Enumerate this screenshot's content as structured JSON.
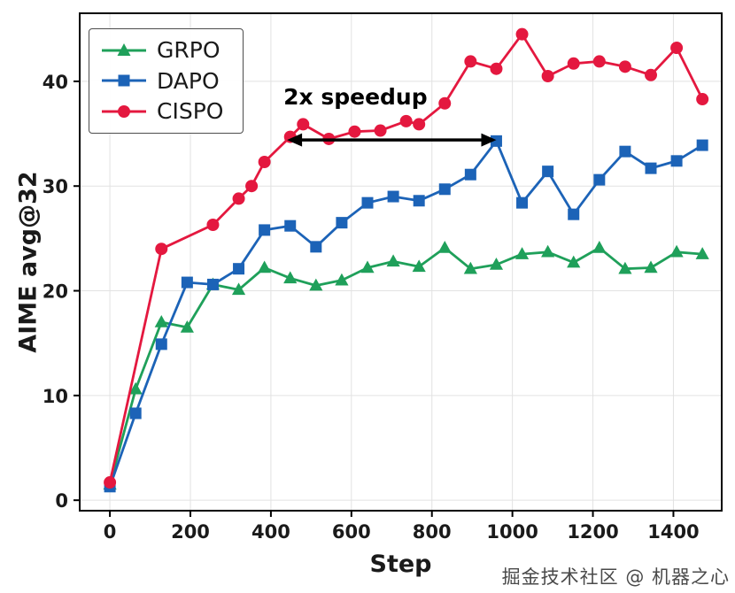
{
  "watermark": {
    "text": "掘金技术社区 @ 机器之心"
  },
  "chart_data": {
    "type": "line",
    "title": "",
    "xlabel": "Step",
    "ylabel": "AIME avg@32",
    "xlim": [
      -75,
      1520
    ],
    "ylim": [
      -1,
      46.5
    ],
    "xticks": [
      0,
      200,
      400,
      600,
      800,
      1000,
      1200,
      1400
    ],
    "yticks": [
      0,
      10,
      20,
      30,
      40
    ],
    "grid": true,
    "legend_position": "upper-left",
    "annotation": {
      "text": "2x speedup",
      "arrow_x_range": [
        440,
        960
      ],
      "arrow_y": 34.4,
      "text_x": 610,
      "text_y": 37.8
    },
    "series": [
      {
        "name": "GRPO",
        "color": "#1fa05a",
        "marker": "triangle",
        "x": [
          0,
          64,
          128,
          192,
          256,
          320,
          384,
          448,
          512,
          576,
          640,
          704,
          768,
          832,
          896,
          960,
          1024,
          1088,
          1152,
          1216,
          1280,
          1344,
          1408,
          1472
        ],
        "y": [
          1.5,
          10.6,
          17.0,
          16.5,
          20.6,
          20.1,
          22.2,
          21.2,
          20.5,
          21.0,
          22.2,
          22.8,
          22.3,
          24.1,
          22.1,
          22.5,
          23.5,
          23.7,
          22.7,
          24.1,
          22.1,
          22.2,
          23.7,
          23.5
        ]
      },
      {
        "name": "DAPO",
        "color": "#1c63b7",
        "marker": "square",
        "x": [
          0,
          64,
          128,
          192,
          256,
          320,
          384,
          448,
          512,
          576,
          640,
          704,
          768,
          832,
          896,
          960,
          1024,
          1088,
          1152,
          1216,
          1280,
          1344,
          1408,
          1472
        ],
        "y": [
          1.3,
          8.3,
          14.9,
          20.8,
          20.6,
          22.1,
          25.8,
          26.2,
          24.2,
          26.5,
          28.4,
          29.0,
          28.6,
          29.7,
          31.1,
          34.3,
          28.4,
          31.4,
          27.3,
          30.6,
          33.3,
          31.7,
          32.4,
          33.9
        ]
      },
      {
        "name": "CISPO",
        "color": "#e4183f",
        "marker": "circle",
        "x": [
          0,
          128,
          256,
          320,
          352,
          384,
          448,
          480,
          544,
          608,
          672,
          736,
          768,
          832,
          896,
          960,
          1024,
          1088,
          1152,
          1216,
          1280,
          1344,
          1408,
          1472
        ],
        "y": [
          1.7,
          24.0,
          26.3,
          28.8,
          30.0,
          32.3,
          34.7,
          35.9,
          34.5,
          35.2,
          35.3,
          36.2,
          35.9,
          37.9,
          41.9,
          41.2,
          44.5,
          40.5,
          41.7,
          41.9,
          41.4,
          40.6,
          43.2,
          38.3
        ]
      }
    ]
  }
}
